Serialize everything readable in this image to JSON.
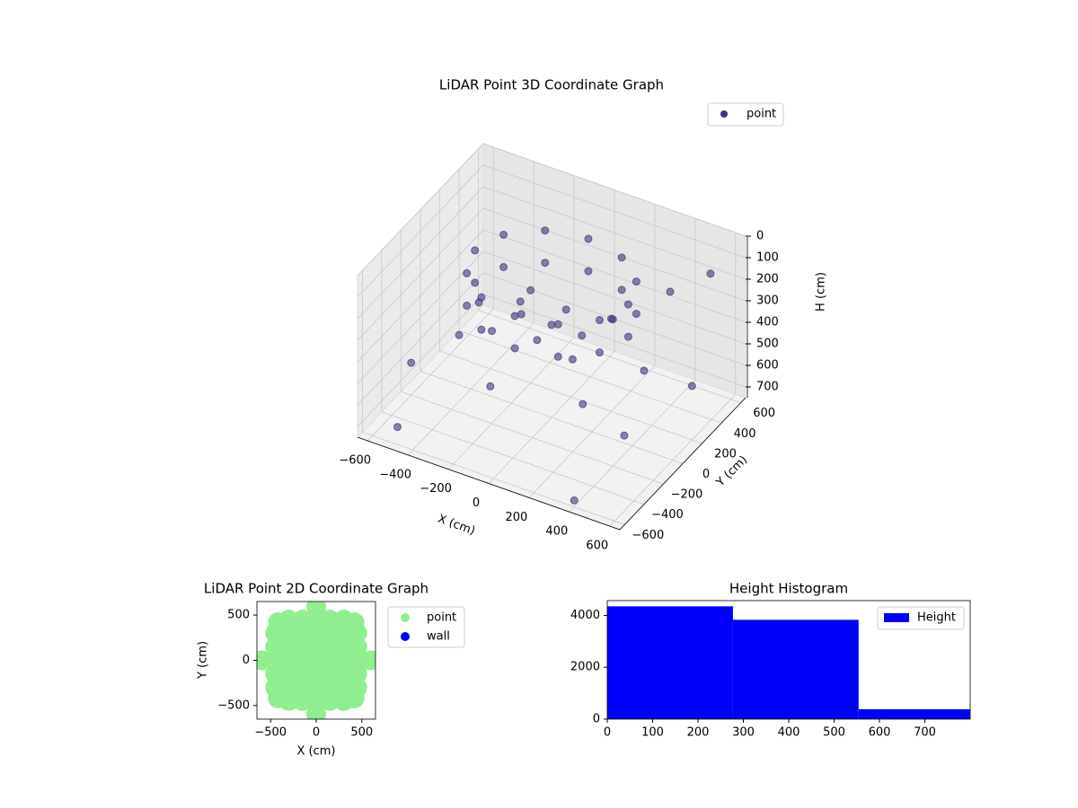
{
  "chart_data": [
    {
      "type": "scatter3d",
      "title": "LiDAR Point 3D Coordinate Graph",
      "xlabel": "X (cm)",
      "ylabel": "Y (cm)",
      "zlabel": "H (cm)",
      "xlim": [
        -650,
        650
      ],
      "ylim": [
        -650,
        650
      ],
      "zlim": [
        0,
        750
      ],
      "zinverted": true,
      "xticks": [
        {
          "value": -600,
          "label": "−600"
        },
        {
          "value": -400,
          "label": "−400"
        },
        {
          "value": -200,
          "label": "−200"
        },
        0,
        200,
        400,
        600
      ],
      "yticks": [
        {
          "value": -600,
          "label": "−600"
        },
        {
          "value": -400,
          "label": "−400"
        },
        {
          "value": -200,
          "label": "−200"
        },
        0,
        200,
        400,
        600
      ],
      "zticks": [
        0,
        100,
        200,
        300,
        400,
        500,
        600,
        700
      ],
      "grid": true,
      "legend": "upper right",
      "series": [
        {
          "name": "point",
          "color": "#46307a",
          "x": [
            380,
            329,
            190,
            0,
            -190,
            -329,
            -380,
            -329,
            -190,
            0,
            190,
            329,
            380,
            329,
            190,
            0,
            -190,
            -329,
            -380,
            -329,
            -190,
            0,
            190,
            329,
            0,
            150,
            -150,
            0,
            0,
            200,
            -200,
            200,
            -200,
            406,
            109,
            -297,
            -406,
            -109,
            297,
            -600,
            500,
            600,
            -500,
            300,
            600,
            -600,
            400
          ],
          "y": [
            0,
            190,
            329,
            380,
            329,
            190,
            0,
            -190,
            -329,
            -380,
            -329,
            -190,
            0,
            190,
            329,
            380,
            329,
            190,
            0,
            -190,
            -329,
            -380,
            -329,
            -190,
            0,
            0,
            0,
            150,
            -150,
            200,
            200,
            -200,
            -200,
            109,
            406,
            297,
            -109,
            -406,
            -297,
            500,
            600,
            -500,
            -550,
            600,
            200,
            -200,
            -600
          ],
          "z": [
            100,
            100,
            100,
            100,
            100,
            100,
            100,
            100,
            100,
            100,
            100,
            100,
            250,
            250,
            250,
            250,
            250,
            250,
            250,
            250,
            250,
            250,
            250,
            250,
            320,
            320,
            320,
            320,
            320,
            320,
            320,
            320,
            320,
            450,
            450,
            450,
            450,
            450,
            450,
            650,
            200,
            400,
            700,
            350,
            500,
            600,
            720
          ]
        }
      ]
    },
    {
      "type": "scatter",
      "title": "LiDAR Point 2D Coordinate Graph",
      "xlabel": "X (cm)",
      "ylabel": "Y (cm)",
      "xlim": [
        -650,
        650
      ],
      "ylim": [
        -650,
        650
      ],
      "xticks": [
        {
          "value": -500,
          "label": "−500"
        },
        0,
        500
      ],
      "yticks": [
        {
          "value": -500,
          "label": "−500"
        },
        0,
        500
      ],
      "legend": "outside upper right",
      "series": [
        {
          "name": "point",
          "color": "#90ee90",
          "x": [
            -300,
            -150,
            0,
            150,
            300,
            -450,
            -300,
            -150,
            0,
            150,
            300,
            450,
            -450,
            -300,
            -150,
            0,
            150,
            300,
            450,
            -450,
            -300,
            -150,
            0,
            150,
            300,
            450,
            -450,
            -300,
            -150,
            0,
            150,
            300,
            450,
            -450,
            -300,
            -150,
            0,
            150,
            300,
            450,
            -300,
            -150,
            0,
            150,
            300,
            600,
            -600,
            0,
            0,
            420,
            -420,
            420,
            -420
          ],
          "y": [
            -450,
            -450,
            -450,
            -450,
            -450,
            -300,
            -300,
            -300,
            -300,
            -300,
            -300,
            -300,
            -150,
            -150,
            -150,
            -150,
            -150,
            -150,
            -150,
            0,
            0,
            0,
            0,
            0,
            0,
            0,
            150,
            150,
            150,
            150,
            150,
            150,
            150,
            300,
            300,
            300,
            300,
            300,
            300,
            300,
            450,
            450,
            450,
            450,
            450,
            0,
            0,
            600,
            -600,
            420,
            420,
            -420,
            -420
          ]
        },
        {
          "name": "wall",
          "color": "#0000ff",
          "x": [],
          "y": []
        }
      ]
    },
    {
      "type": "histogram",
      "title": "Height Histogram",
      "bins": [
        0,
        277,
        554,
        831
      ],
      "series": [
        {
          "name": "Height",
          "color": "#0000ff",
          "values": [
            4350,
            3830,
            380
          ]
        }
      ],
      "xlim": [
        0,
        800
      ],
      "ylim": [
        0,
        4570
      ],
      "xticks": [
        0,
        100,
        200,
        300,
        400,
        500,
        600,
        700
      ],
      "yticks": [
        0,
        2000,
        4000
      ],
      "legend": "upper right"
    }
  ]
}
